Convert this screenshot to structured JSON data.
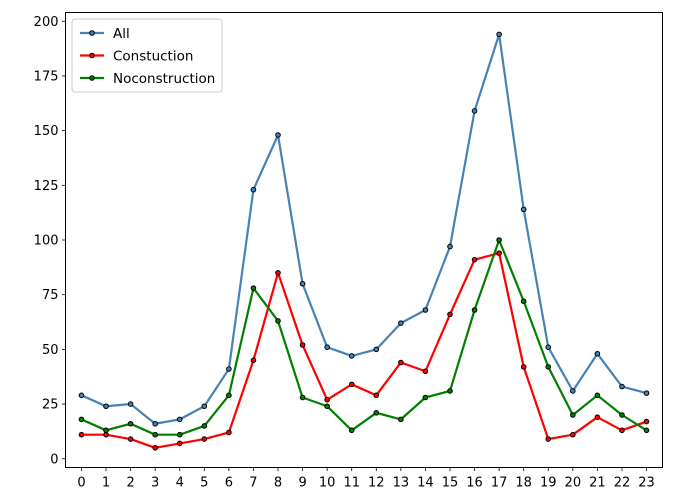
{
  "chart_data": {
    "type": "line",
    "title": "",
    "xlabel": "",
    "ylabel": "",
    "x": [
      0,
      1,
      2,
      3,
      4,
      5,
      6,
      7,
      8,
      9,
      10,
      11,
      12,
      13,
      14,
      15,
      16,
      17,
      18,
      19,
      20,
      21,
      22,
      23
    ],
    "xlim": [
      -0.65,
      23.65
    ],
    "ylim": [
      -4,
      204
    ],
    "yticks": [
      0,
      25,
      50,
      75,
      100,
      125,
      150,
      175,
      200
    ],
    "grid": false,
    "legend_position": "top-left",
    "series": [
      {
        "name": "All",
        "color": "#4682b4",
        "values": [
          29,
          24,
          25,
          16,
          18,
          24,
          41,
          123,
          148,
          80,
          51,
          47,
          50,
          62,
          68,
          97,
          159,
          194,
          114,
          51,
          31,
          48,
          33,
          30
        ]
      },
      {
        "name": "Constuction",
        "color": "#ff0000",
        "values": [
          11,
          11,
          9,
          5,
          7,
          9,
          12,
          45,
          85,
          52,
          27,
          34,
          29,
          44,
          40,
          66,
          91,
          94,
          42,
          9,
          11,
          19,
          13,
          17
        ]
      },
      {
        "name": "Noconstruction",
        "color": "#008000",
        "values": [
          18,
          13,
          16,
          11,
          11,
          15,
          29,
          78,
          63,
          28,
          24,
          13,
          21,
          18,
          28,
          31,
          68,
          100,
          72,
          42,
          20,
          29,
          20,
          13
        ]
      }
    ]
  }
}
